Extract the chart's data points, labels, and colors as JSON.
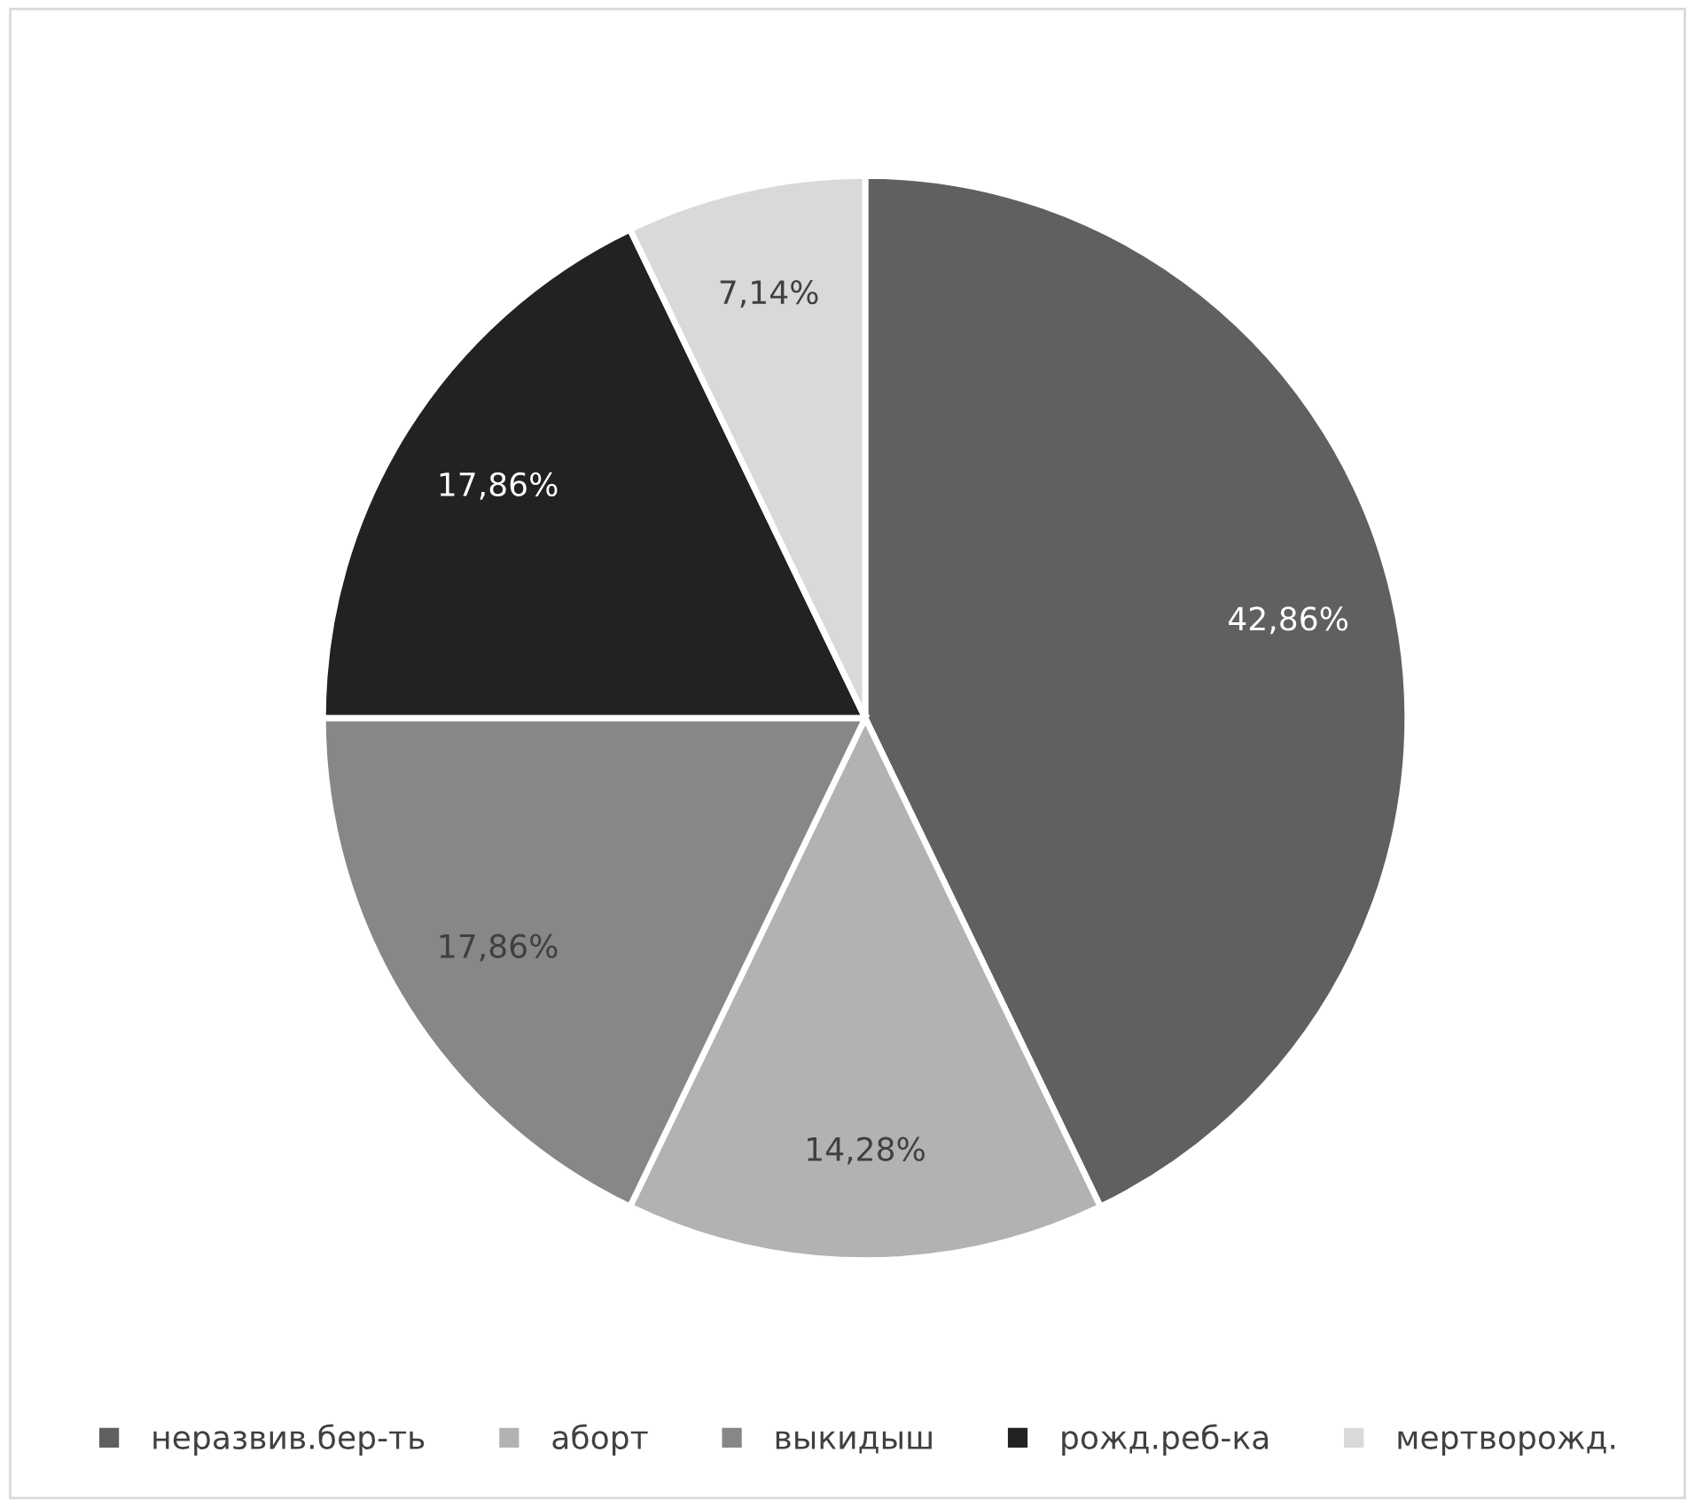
{
  "chart_data": {
    "type": "pie",
    "categories": [
      "неразвив.бер-ть",
      "аборт",
      "выкидыш",
      "рожд.реб-ка",
      "мертворожд."
    ],
    "values": [
      42.86,
      14.28,
      17.86,
      17.86,
      7.14
    ],
    "colors": [
      "#606060",
      "#b2b2b2",
      "#878787",
      "#222222",
      "#d9d9d9"
    ],
    "value_labels": [
      "42,86%",
      "14,28%",
      "17,86%",
      "17,86%",
      "7,14%"
    ],
    "legend": "bottom"
  }
}
